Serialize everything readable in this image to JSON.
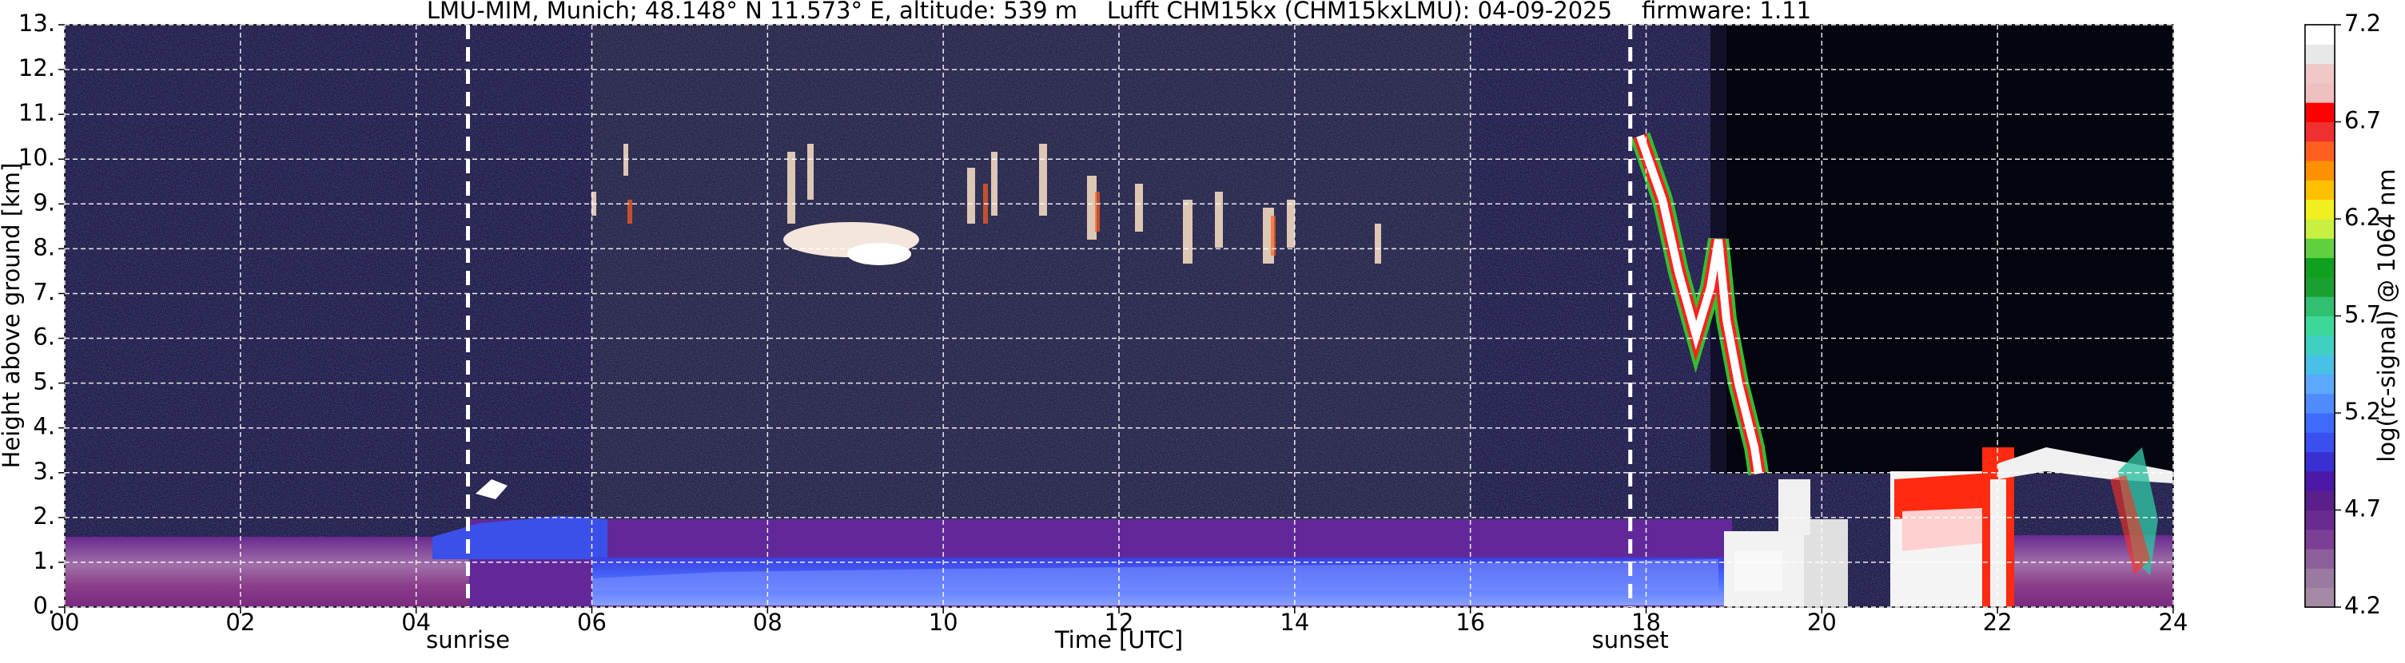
{
  "chart_data": {
    "type": "heatmap",
    "title": "LMU-MIM, Munich; 48.148° N 11.573° E, altitude: 539 m    Lufft CHM15kx (CHM15kxLMU): 04-09-2025    firmware: 1.11",
    "x_label": "Time [UTC]",
    "y_label": "Height above ground [km]",
    "xlim": [
      0,
      24
    ],
    "xticks": [
      {
        "value": 0,
        "label": "00"
      },
      {
        "value": 2,
        "label": "02"
      },
      {
        "value": 4,
        "label": "04"
      },
      {
        "value": 6,
        "label": "06"
      },
      {
        "value": 8,
        "label": "08"
      },
      10,
      12,
      14,
      16,
      18,
      20,
      22,
      24
    ],
    "ylim": [
      0,
      13
    ],
    "yticks": [
      {
        "value": 0,
        "label": "0."
      },
      {
        "value": 1,
        "label": "1."
      },
      {
        "value": 2,
        "label": "2."
      },
      {
        "value": 3,
        "label": "3."
      },
      {
        "value": 4,
        "label": "4."
      },
      {
        "value": 5,
        "label": "5."
      },
      {
        "value": 6,
        "label": "6."
      },
      {
        "value": 7,
        "label": "7."
      },
      {
        "value": 8,
        "label": "8."
      },
      {
        "value": 9,
        "label": "9."
      },
      {
        "value": 10,
        "label": "10."
      },
      {
        "value": 11,
        "label": "11."
      },
      {
        "value": 12,
        "label": "12."
      },
      {
        "value": 13,
        "label": "13."
      }
    ],
    "grid": true,
    "annotations": [
      {
        "x": 4.59,
        "label": "sunrise"
      },
      {
        "x": 17.82,
        "label": "sunset"
      }
    ],
    "colorbar": {
      "label": "log(rc-signal) @ 1064 nm",
      "lim": [
        4.2,
        7.2
      ],
      "ticks": [
        4.2,
        4.7,
        5.2,
        5.7,
        6.2,
        6.7,
        7.2
      ],
      "colors": [
        "#a58aa5",
        "#9a7aa0",
        "#8c5f9a",
        "#7d3f95",
        "#6a2a90",
        "#5a1f8a",
        "#4b18a8",
        "#3a2fd0",
        "#3b4ff0",
        "#3d6bff",
        "#4f8bff",
        "#5aa8ff",
        "#48c0e8",
        "#40d0c0",
        "#3cd89a",
        "#30c070",
        "#1aa030",
        "#10a020",
        "#60d040",
        "#c8f040",
        "#f0f020",
        "#ffc000",
        "#ff9000",
        "#ff6020",
        "#f03030",
        "#ff0000",
        "#f0c0c0",
        "#f0c8c8",
        "#e8e8e8",
        "#ffffff"
      ]
    }
  }
}
